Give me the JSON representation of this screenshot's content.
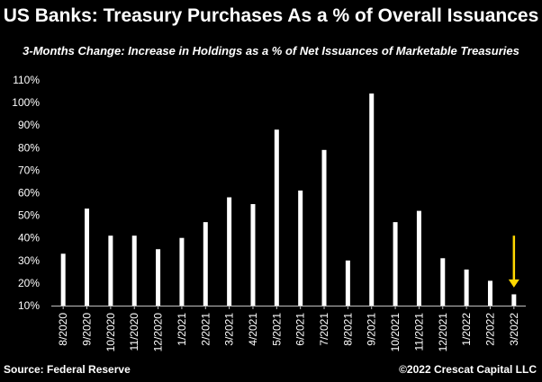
{
  "header": {
    "title": "US Banks: Treasury Purchases As a % of Overall Issuances",
    "subtitle": "3-Months Change: Increase in Holdings as a % of Net Issuances of Marketable Treasuries"
  },
  "footer": {
    "source": "Source: Federal Reserve",
    "copyright": "©2022 Crescat Capital LLC"
  },
  "colors": {
    "background": "#000000",
    "bar": "#ffffff",
    "text": "#ffffff",
    "arrow": "#ffd700"
  },
  "chart_data": {
    "type": "bar",
    "categories": [
      "8/2020",
      "9/2020",
      "10/2020",
      "11/2020",
      "12/2020",
      "1/2021",
      "2/2021",
      "3/2021",
      "4/2021",
      "5/2021",
      "6/2021",
      "7/2021",
      "8/2021",
      "9/2021",
      "10/2021",
      "11/2021",
      "12/2021",
      "1/2022",
      "2/2022",
      "3/2022"
    ],
    "values": [
      33,
      53,
      41,
      41,
      35,
      40,
      47,
      58,
      55,
      88,
      61,
      79,
      30,
      104,
      47,
      52,
      31,
      26,
      21,
      15
    ],
    "yticks": [
      "10%",
      "20%",
      "30%",
      "40%",
      "50%",
      "60%",
      "70%",
      "80%",
      "90%",
      "100%",
      "110%"
    ],
    "ylim": [
      10,
      110
    ],
    "grid": false,
    "legend": "none",
    "annotation": {
      "type": "down-arrow",
      "category": "3/2022",
      "color": "#ffd700"
    }
  }
}
